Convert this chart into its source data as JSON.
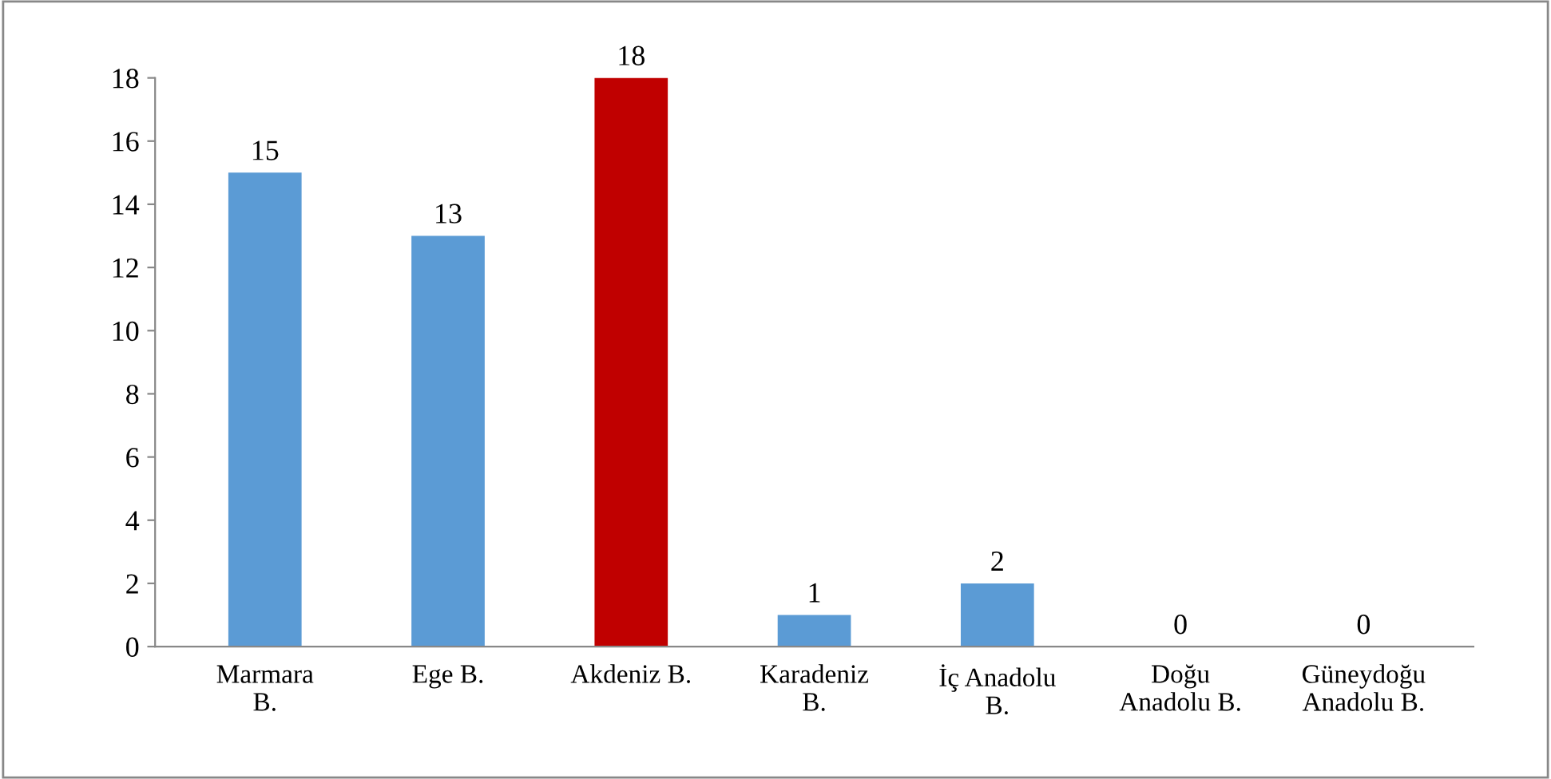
{
  "chart_data": {
    "type": "bar",
    "categories": [
      "Marmara\nB.",
      "Ege B.",
      "Akdeniz B.",
      "Karadeniz\nB.",
      "İç Anadolu\nB.",
      "Doğu\nAnadolu B.",
      "Güneydoğu\nAnadolu B."
    ],
    "values": [
      15,
      13,
      18,
      1,
      2,
      0,
      0
    ],
    "colors": [
      "#5b9bd5",
      "#5b9bd5",
      "#c00000",
      "#5b9bd5",
      "#5b9bd5",
      "#5b9bd5",
      "#5b9bd5"
    ],
    "ylim": [
      0,
      18
    ],
    "yticks": [
      0,
      2,
      4,
      6,
      8,
      10,
      12,
      14,
      16,
      18
    ],
    "data_labels": true,
    "grid": false
  }
}
